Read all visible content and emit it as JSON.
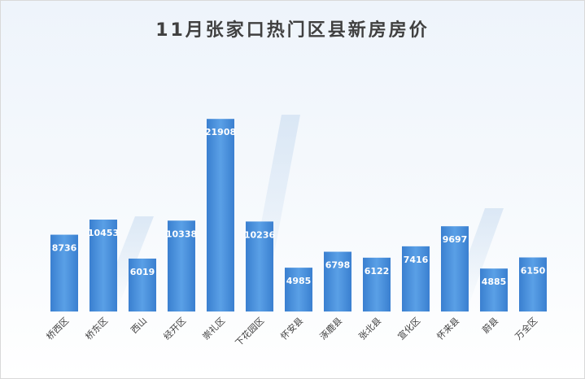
{
  "chart_data": {
    "type": "bar",
    "title": "11月张家口热门区县新房房价",
    "xlabel": "",
    "ylabel": "",
    "ylim": [
      0,
      23500
    ],
    "grid": false,
    "categories": [
      "桥西区",
      "桥东区",
      "西山",
      "经开区",
      "崇礼区",
      "下花园区",
      "怀安县",
      "涿鹿县",
      "张北县",
      "宣化区",
      "怀来县",
      "蔚县",
      "万全区"
    ],
    "values": [
      8736,
      10453,
      6019,
      10338,
      21908,
      10236,
      4985,
      6798,
      6122,
      7416,
      9697,
      4885,
      6150
    ],
    "bar_color": "#4a90d9"
  }
}
